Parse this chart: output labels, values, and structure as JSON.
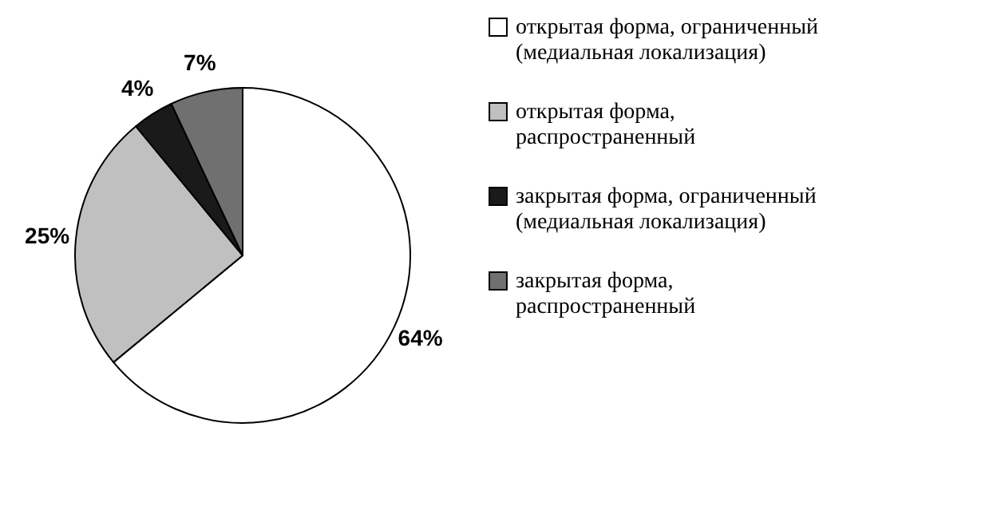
{
  "chart_data": {
    "type": "pie",
    "categories": [
      "открытая форма, ограниченный (медиальная локализация)",
      "открытая форма, распространенный",
      "закрытая форма, ограниченный (медиальная локализация)",
      "закрытая форма, распространенный"
    ],
    "values": [
      64,
      25,
      4,
      7
    ],
    "value_labels": [
      "64%",
      "25%",
      "4%",
      "7%"
    ],
    "colors": [
      "#ffffff",
      "#c0c0c0",
      "#1a1a1a",
      "#707070"
    ],
    "legend": "right"
  }
}
